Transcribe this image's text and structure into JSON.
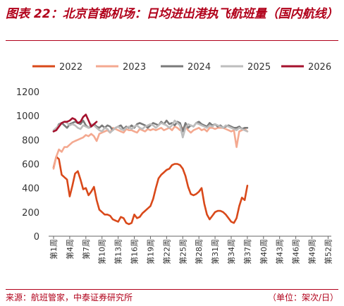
{
  "chart_data": {
    "type": "line",
    "title": "图表 22：北京首都机场：日均进出港执飞航班量（国内航线）",
    "xlabel": "",
    "ylabel": "",
    "ylim": [
      0,
      1200
    ],
    "yticks": [
      0,
      200,
      400,
      600,
      800,
      1000,
      1200
    ],
    "grid": false,
    "legend_position": "top",
    "x_tick_labels": [
      "第1周",
      "第4周",
      "第7周",
      "第10周",
      "第13周",
      "第16周",
      "第19周",
      "第22周",
      "第25周",
      "第28周",
      "第31周",
      "第34周",
      "第37周",
      "第40周",
      "第43周",
      "第46周",
      "第49周",
      "第52周"
    ],
    "x_tick_weeks": [
      1,
      4,
      7,
      10,
      13,
      16,
      19,
      22,
      25,
      28,
      31,
      34,
      37,
      40,
      43,
      46,
      49,
      52
    ],
    "series": [
      {
        "name": "2022",
        "color": "#d9491a",
        "values": [
          [
            1,
            570
          ],
          [
            1.5,
            660
          ],
          [
            2,
            640
          ],
          [
            2.5,
            510
          ],
          [
            3,
            490
          ],
          [
            3.5,
            470
          ],
          [
            4,
            330
          ],
          [
            4.5,
            420
          ],
          [
            5,
            520
          ],
          [
            5.5,
            540
          ],
          [
            6,
            470
          ],
          [
            6.5,
            390
          ],
          [
            7,
            400
          ],
          [
            7.5,
            340
          ],
          [
            8,
            370
          ],
          [
            8.5,
            410
          ],
          [
            9,
            300
          ],
          [
            9.5,
            220
          ],
          [
            10,
            200
          ],
          [
            10.5,
            180
          ],
          [
            11,
            180
          ],
          [
            11.5,
            170
          ],
          [
            12,
            140
          ],
          [
            12.5,
            130
          ],
          [
            13,
            120
          ],
          [
            13.5,
            160
          ],
          [
            14,
            150
          ],
          [
            14.5,
            110
          ],
          [
            15,
            100
          ],
          [
            15.5,
            110
          ],
          [
            16,
            180
          ],
          [
            16.5,
            150
          ],
          [
            17,
            160
          ],
          [
            17.5,
            190
          ],
          [
            18,
            210
          ],
          [
            18.5,
            230
          ],
          [
            19,
            250
          ],
          [
            19.5,
            310
          ],
          [
            20,
            400
          ],
          [
            20.5,
            480
          ],
          [
            21,
            510
          ],
          [
            21.5,
            530
          ],
          [
            22,
            550
          ],
          [
            22.5,
            560
          ],
          [
            23,
            590
          ],
          [
            23.5,
            600
          ],
          [
            24,
            600
          ],
          [
            24.5,
            590
          ],
          [
            25,
            560
          ],
          [
            25.5,
            500
          ],
          [
            26,
            410
          ],
          [
            26.5,
            350
          ],
          [
            27,
            340
          ],
          [
            27.5,
            350
          ],
          [
            28,
            370
          ],
          [
            28.5,
            400
          ],
          [
            29,
            270
          ],
          [
            29.5,
            180
          ],
          [
            30,
            140
          ],
          [
            30.5,
            170
          ],
          [
            31,
            200
          ],
          [
            31.5,
            210
          ],
          [
            32,
            210
          ],
          [
            32.5,
            200
          ],
          [
            33,
            180
          ],
          [
            33.5,
            150
          ],
          [
            34,
            120
          ],
          [
            34.5,
            110
          ],
          [
            35,
            150
          ],
          [
            35.5,
            250
          ],
          [
            36,
            320
          ],
          [
            36.5,
            300
          ],
          [
            37,
            420
          ]
        ]
      },
      {
        "name": "2023",
        "color": "#f4a990",
        "values": [
          [
            1,
            560
          ],
          [
            1.5,
            660
          ],
          [
            2,
            720
          ],
          [
            2.5,
            700
          ],
          [
            3,
            740
          ],
          [
            3.5,
            740
          ],
          [
            4,
            760
          ],
          [
            4.5,
            780
          ],
          [
            5,
            790
          ],
          [
            5.5,
            800
          ],
          [
            6,
            810
          ],
          [
            6.5,
            820
          ],
          [
            7,
            840
          ],
          [
            7.5,
            830
          ],
          [
            8,
            850
          ],
          [
            8.5,
            830
          ],
          [
            9,
            790
          ],
          [
            9.5,
            850
          ],
          [
            10,
            860
          ],
          [
            10.5,
            870
          ],
          [
            11,
            880
          ],
          [
            11.5,
            860
          ],
          [
            12,
            900
          ],
          [
            12.5,
            890
          ],
          [
            13,
            880
          ],
          [
            13.5,
            870
          ],
          [
            14,
            860
          ],
          [
            14.5,
            890
          ],
          [
            15,
            880
          ],
          [
            15.5,
            880
          ],
          [
            16,
            870
          ],
          [
            16.5,
            860
          ],
          [
            17,
            890
          ],
          [
            17.5,
            880
          ],
          [
            18,
            870
          ],
          [
            18.5,
            890
          ],
          [
            19,
            880
          ],
          [
            19.5,
            890
          ],
          [
            20,
            880
          ],
          [
            20.5,
            890
          ],
          [
            21,
            900
          ],
          [
            21.5,
            880
          ],
          [
            22,
            890
          ],
          [
            22.5,
            900
          ],
          [
            23,
            880
          ],
          [
            23.5,
            910
          ],
          [
            24,
            900
          ],
          [
            24.5,
            880
          ],
          [
            25,
            900
          ],
          [
            25.5,
            910
          ],
          [
            26,
            880
          ],
          [
            26.5,
            860
          ],
          [
            27,
            880
          ],
          [
            27.5,
            890
          ],
          [
            28,
            900
          ],
          [
            28.5,
            880
          ],
          [
            29,
            890
          ],
          [
            29.5,
            870
          ],
          [
            30,
            900
          ],
          [
            30.5,
            900
          ],
          [
            31,
            890
          ],
          [
            31.5,
            900
          ],
          [
            32,
            900
          ],
          [
            32.5,
            900
          ],
          [
            33,
            890
          ],
          [
            33.5,
            880
          ],
          [
            34,
            870
          ],
          [
            34.5,
            880
          ],
          [
            35,
            740
          ],
          [
            35.5,
            870
          ],
          [
            36,
            880
          ],
          [
            36.5,
            890
          ],
          [
            37,
            870
          ]
        ]
      },
      {
        "name": "2024",
        "color": "#7a7a7a",
        "values": [
          [
            1,
            870
          ],
          [
            1.5,
            890
          ],
          [
            2,
            930
          ],
          [
            2.5,
            940
          ],
          [
            3,
            920
          ],
          [
            3.5,
            900
          ],
          [
            4,
            930
          ],
          [
            4.5,
            940
          ],
          [
            5,
            950
          ],
          [
            5.5,
            940
          ],
          [
            6,
            930
          ],
          [
            6.5,
            960
          ],
          [
            7,
            920
          ],
          [
            7.5,
            900
          ],
          [
            8,
            910
          ],
          [
            8.5,
            930
          ],
          [
            9,
            910
          ],
          [
            9.5,
            900
          ],
          [
            10,
            920
          ],
          [
            10.5,
            900
          ],
          [
            11,
            920
          ],
          [
            11.5,
            910
          ],
          [
            12,
            880
          ],
          [
            12.5,
            900
          ],
          [
            13,
            910
          ],
          [
            13.5,
            920
          ],
          [
            14,
            890
          ],
          [
            14.5,
            910
          ],
          [
            15,
            900
          ],
          [
            15.5,
            920
          ],
          [
            16,
            900
          ],
          [
            16.5,
            930
          ],
          [
            17,
            940
          ],
          [
            17.5,
            930
          ],
          [
            18,
            920
          ],
          [
            18.5,
            900
          ],
          [
            19,
            920
          ],
          [
            19.5,
            940
          ],
          [
            20,
            930
          ],
          [
            20.5,
            920
          ],
          [
            21,
            950
          ],
          [
            21.5,
            930
          ],
          [
            22,
            960
          ],
          [
            22.5,
            930
          ],
          [
            23,
            940
          ],
          [
            23.5,
            920
          ],
          [
            24,
            950
          ],
          [
            24.5,
            940
          ],
          [
            25,
            870
          ],
          [
            25.5,
            940
          ],
          [
            26,
            900
          ],
          [
            26.5,
            920
          ],
          [
            27,
            910
          ],
          [
            27.5,
            940
          ],
          [
            28,
            950
          ],
          [
            28.5,
            930
          ],
          [
            29,
            920
          ],
          [
            29.5,
            910
          ],
          [
            30,
            940
          ],
          [
            30.5,
            920
          ],
          [
            31,
            930
          ],
          [
            31.5,
            910
          ],
          [
            32,
            920
          ],
          [
            32.5,
            900
          ],
          [
            33,
            910
          ],
          [
            33.5,
            920
          ],
          [
            34,
            910
          ],
          [
            34.5,
            900
          ],
          [
            35,
            900
          ],
          [
            35.5,
            910
          ],
          [
            36,
            890
          ],
          [
            36.5,
            900
          ],
          [
            37,
            900
          ]
        ]
      },
      {
        "name": "2025",
        "color": "#bdbdbd",
        "values": [
          [
            1,
            880
          ],
          [
            1.5,
            900
          ],
          [
            2,
            920
          ],
          [
            2.5,
            940
          ],
          [
            3,
            950
          ],
          [
            3.5,
            940
          ],
          [
            4,
            920
          ],
          [
            4.5,
            930
          ],
          [
            5,
            920
          ],
          [
            5.5,
            900
          ],
          [
            6,
            890
          ],
          [
            6.5,
            920
          ],
          [
            7,
            910
          ],
          [
            7.5,
            900
          ],
          [
            8,
            930
          ],
          [
            8.5,
            920
          ],
          [
            9,
            900
          ],
          [
            9.5,
            880
          ],
          [
            10,
            870
          ],
          [
            10.5,
            900
          ],
          [
            11,
            890
          ],
          [
            11.5,
            860
          ],
          [
            12,
            880
          ],
          [
            12.5,
            900
          ],
          [
            13,
            910
          ],
          [
            13.5,
            890
          ],
          [
            14,
            880
          ],
          [
            14.5,
            900
          ],
          [
            15,
            910
          ],
          [
            15.5,
            890
          ],
          [
            16,
            910
          ],
          [
            16.5,
            920
          ],
          [
            17,
            900
          ],
          [
            17.5,
            890
          ],
          [
            18,
            910
          ],
          [
            18.5,
            920
          ],
          [
            19,
            930
          ],
          [
            19.5,
            920
          ],
          [
            20,
            900
          ],
          [
            20.5,
            920
          ],
          [
            21,
            940
          ],
          [
            21.5,
            930
          ],
          [
            22,
            920
          ],
          [
            22.5,
            900
          ],
          [
            23,
            920
          ],
          [
            23.5,
            960
          ],
          [
            24,
            940
          ],
          [
            24.5,
            920
          ],
          [
            25,
            820
          ],
          [
            25.5,
            900
          ],
          [
            26,
            930
          ],
          [
            26.5,
            920
          ],
          [
            27,
            910
          ],
          [
            27.5,
            940
          ],
          [
            28,
            930
          ],
          [
            28.5,
            920
          ],
          [
            29,
            910
          ],
          [
            29.5,
            900
          ],
          [
            30,
            920
          ],
          [
            30.5,
            910
          ],
          [
            31,
            930
          ],
          [
            31.5,
            920
          ],
          [
            32,
            910
          ],
          [
            32.5,
            900
          ],
          [
            33,
            920
          ],
          [
            33.5,
            910
          ],
          [
            34,
            900
          ],
          [
            34.5,
            890
          ],
          [
            35,
            880
          ],
          [
            35.5,
            900
          ],
          [
            36,
            890
          ],
          [
            36.5,
            880
          ],
          [
            37,
            870
          ]
        ]
      },
      {
        "name": "2026",
        "color": "#a5112d",
        "values": [
          [
            1,
            870
          ],
          [
            1.5,
            880
          ],
          [
            2,
            910
          ],
          [
            2.5,
            940
          ],
          [
            3,
            950
          ],
          [
            3.5,
            950
          ],
          [
            4,
            960
          ],
          [
            4.5,
            980
          ],
          [
            5,
            970
          ],
          [
            5.5,
            940
          ],
          [
            6,
            950
          ],
          [
            6.5,
            990
          ],
          [
            7,
            1010
          ],
          [
            7.5,
            960
          ],
          [
            8,
            910
          ],
          [
            8.5,
            930
          ],
          [
            9,
            950
          ]
        ]
      }
    ]
  },
  "footer": {
    "source": "来源：航班管家，中泰证券研究所",
    "unit": "（单位：架次/日）"
  }
}
